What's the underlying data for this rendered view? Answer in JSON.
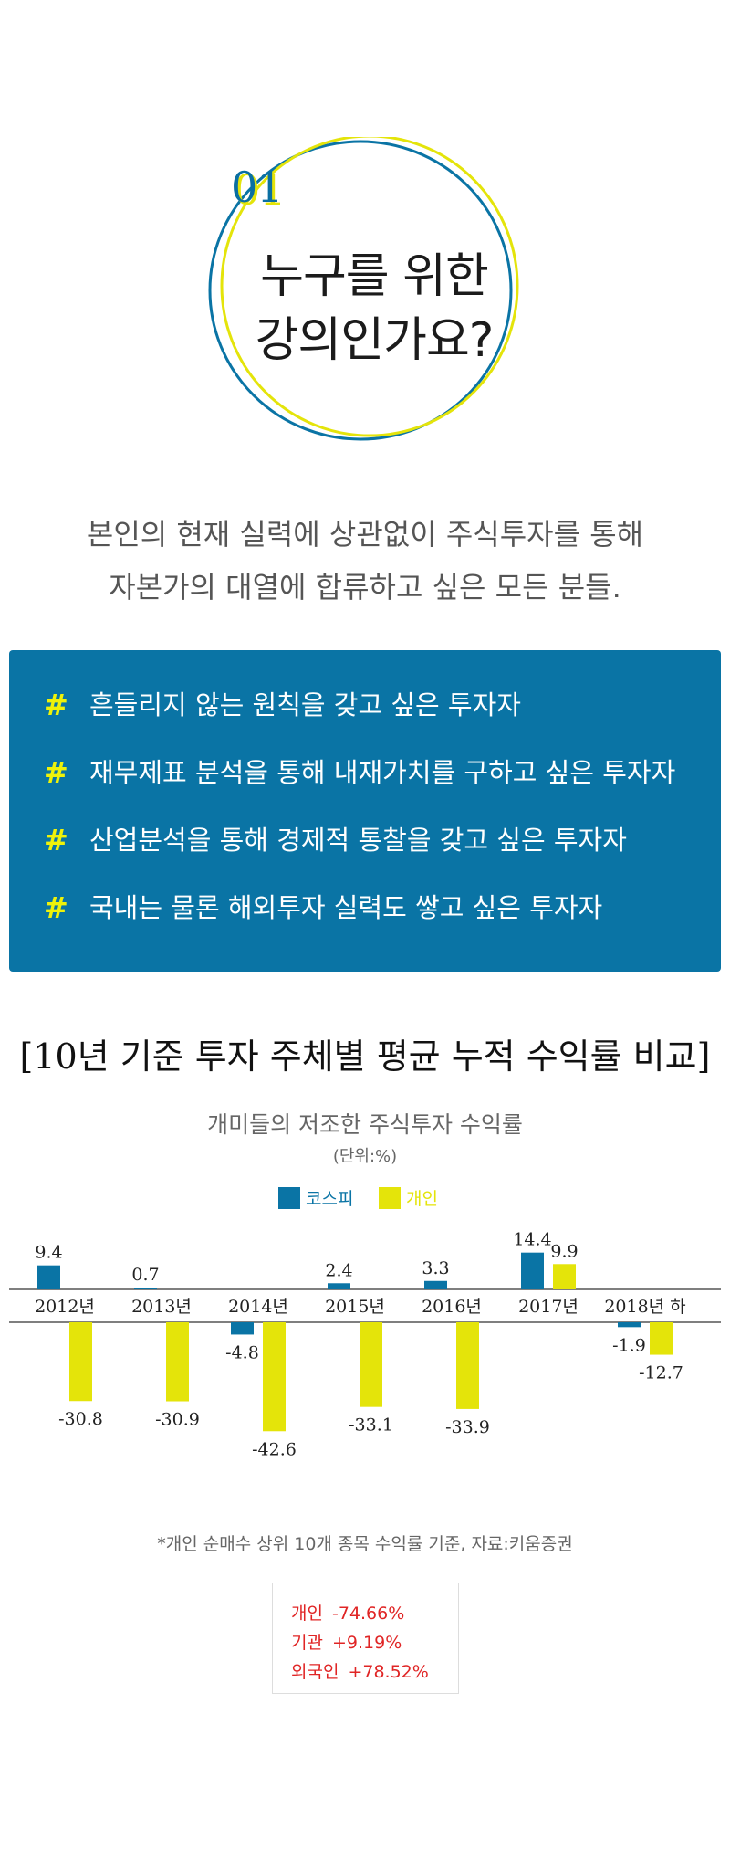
{
  "colors": {
    "accent_blue": "#0a74a5",
    "accent_yellow": "#e4e40a",
    "red": "#e02525"
  },
  "section1": {
    "number": "01",
    "title_line1": "누구를 위한",
    "title_line2": "강의인가요?"
  },
  "intro": {
    "line1": "본인의 현재 실력에 상관없이 주식투자를 통해",
    "line2": "자본가의 대열에 합류하고 싶은 모든 분들."
  },
  "bullets": {
    "symbol": "#",
    "items": [
      "흔들리지 않는 원칙을 갖고 싶은 투자자",
      "재무제표 분석을 통해 내재가치를 구하고 싶은 투자자",
      "산업분석을 통해 경제적 통찰을 갖고 싶은 투자자",
      "국내는 물론 해외투자 실력도 쌓고 싶은 투자자"
    ]
  },
  "comparison": {
    "heading": "[10년 기준 투자 주체별 평균 누적 수익률 비교]",
    "footnote": "*개인 순매수 상위 10개 종목 수익률 기준, 자료:키움증권",
    "summary": [
      {
        "label": "개인",
        "value": "-74.66%"
      },
      {
        "label": "기관",
        "value": "+9.19%"
      },
      {
        "label": "외국인",
        "value": "+78.52%"
      }
    ]
  },
  "chart_data": {
    "type": "bar",
    "title": "개미들의 저조한 주식투자 수익률",
    "unit": "(단위:%)",
    "categories": [
      "2012년",
      "2013년",
      "2014년",
      "2015년",
      "2016년",
      "2017년",
      "2018년 하"
    ],
    "series": [
      {
        "name": "코스피",
        "color": "#0a74a5",
        "values": [
          9.4,
          0.7,
          -4.8,
          2.4,
          3.3,
          14.4,
          -1.9
        ]
      },
      {
        "name": "개인",
        "color": "#e4e40a",
        "values": [
          -30.8,
          -30.9,
          -42.6,
          -33.1,
          -33.9,
          9.9,
          -12.7
        ]
      }
    ],
    "ylim": [
      -45,
      15
    ],
    "legend_position": "top-center",
    "grid": false
  }
}
